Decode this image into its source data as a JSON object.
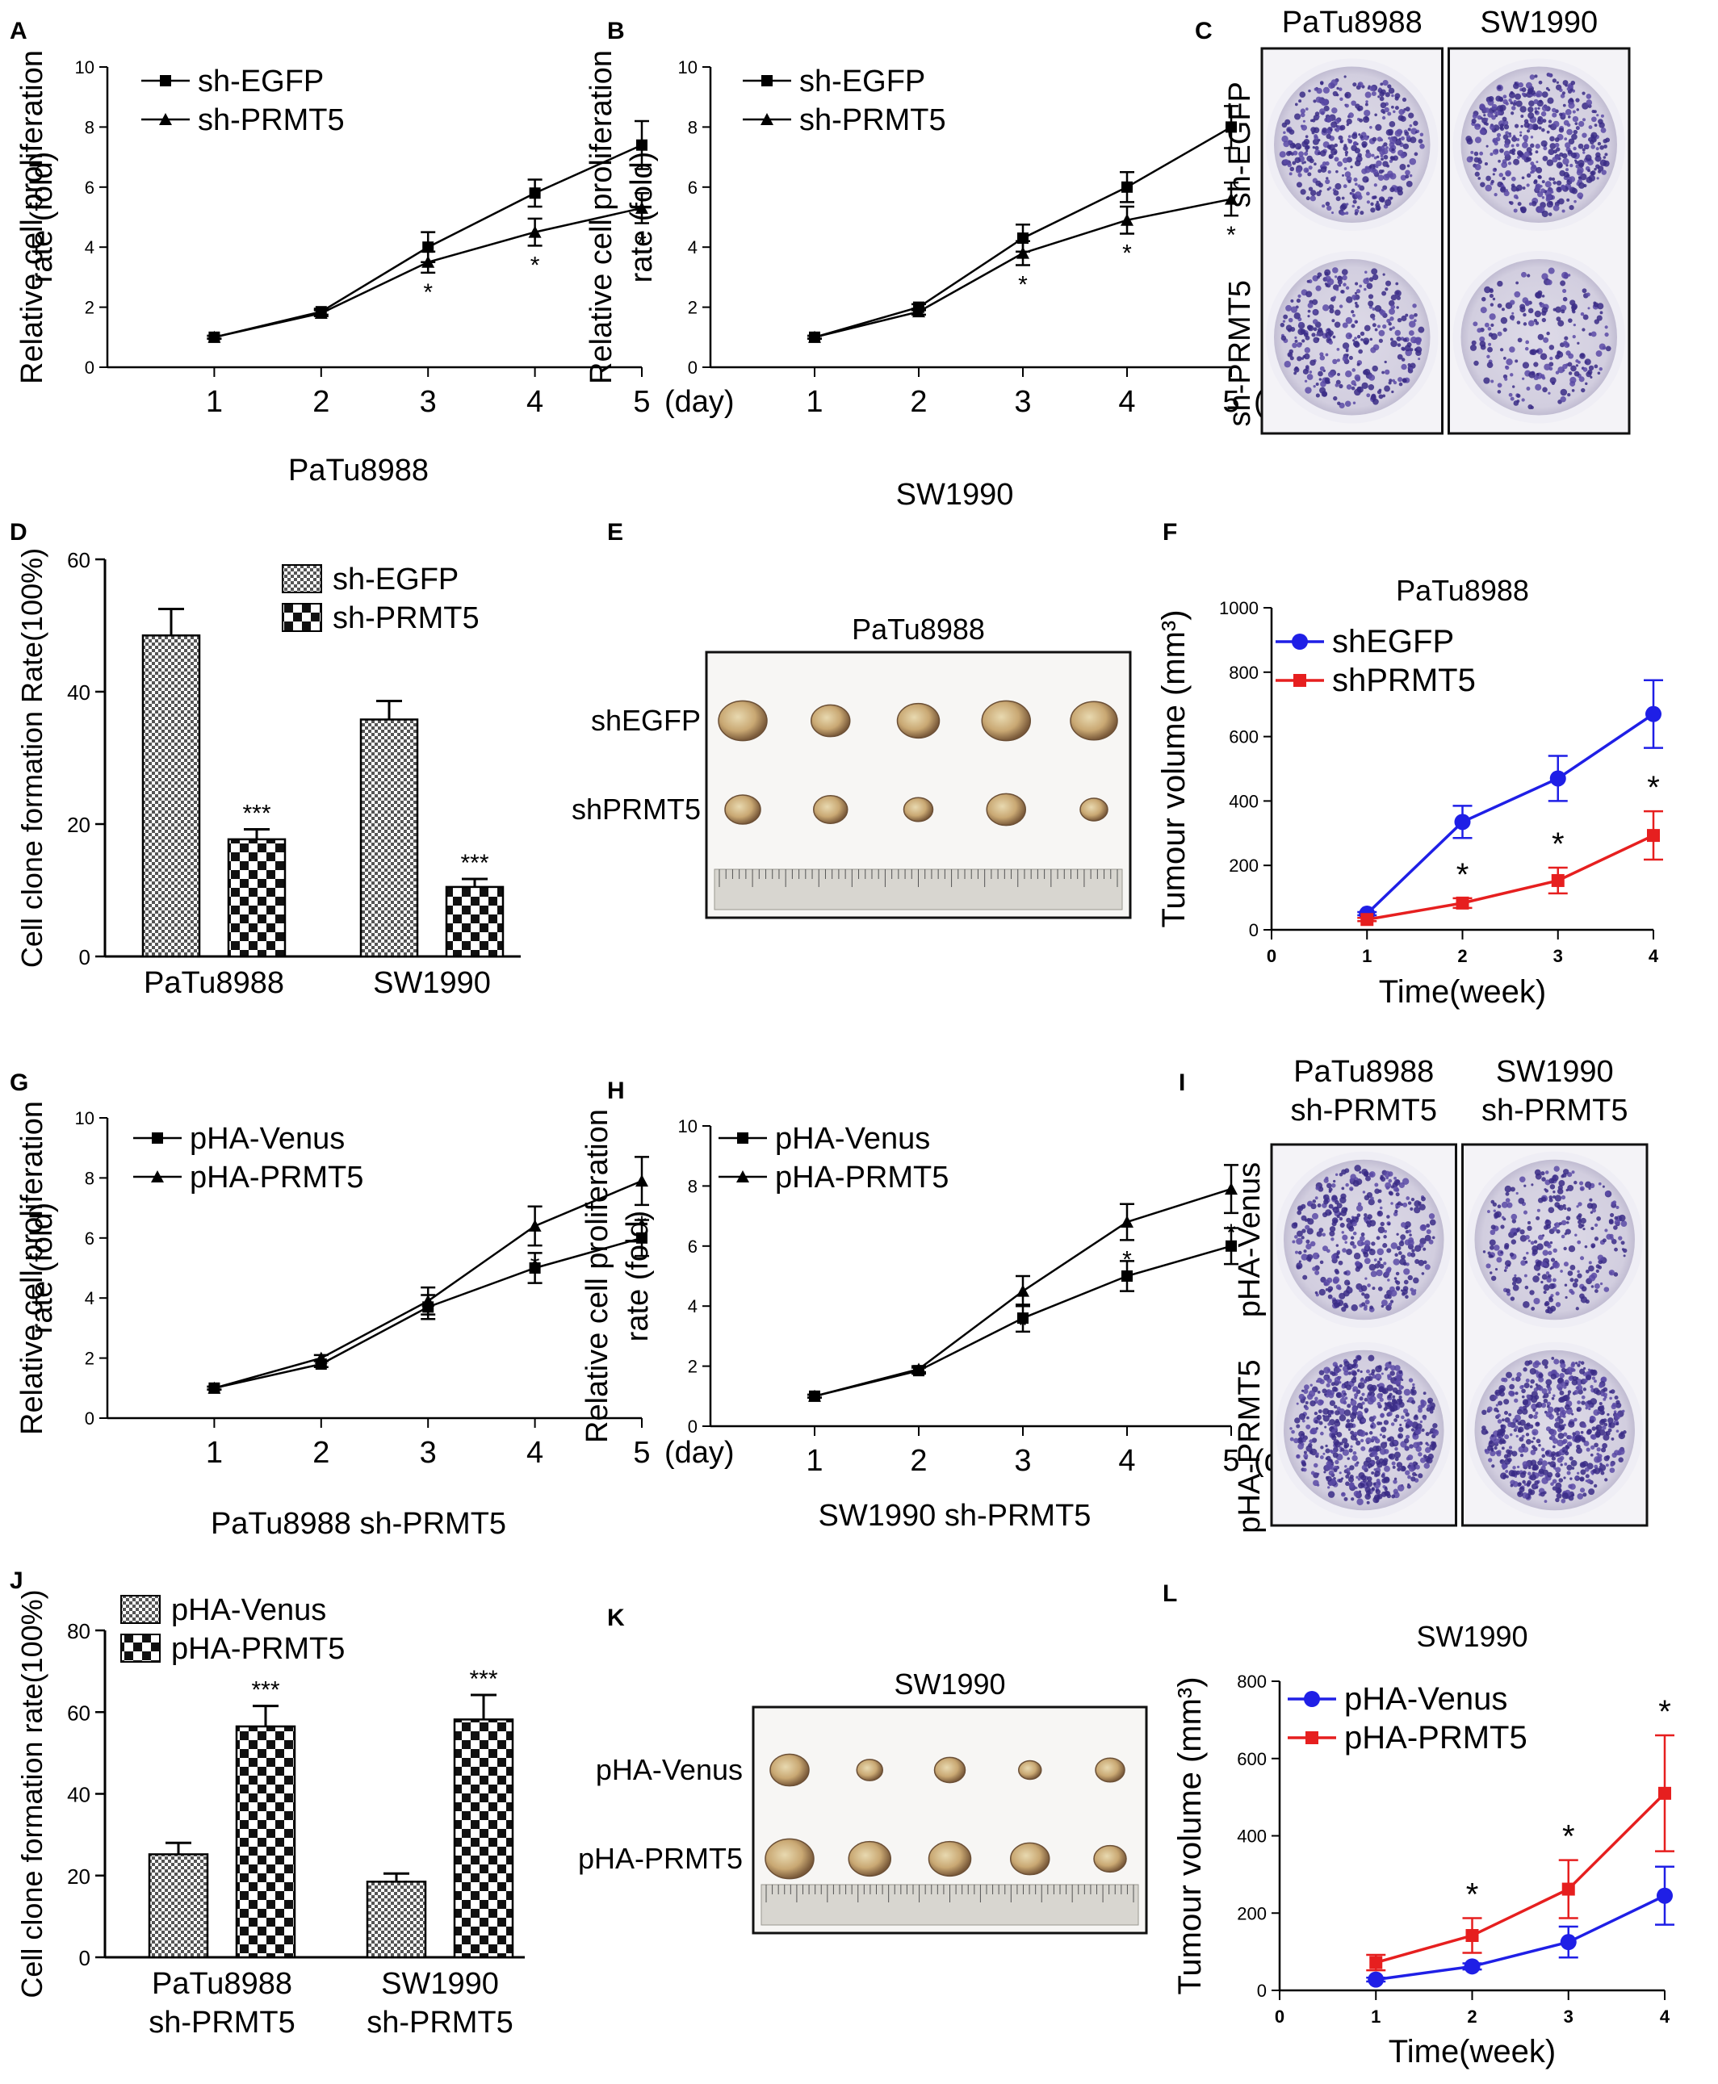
{
  "chart_data": [
    {
      "panel": "A",
      "type": "line",
      "x": [
        1,
        2,
        3,
        4,
        5
      ],
      "x_unit": "(day)",
      "xlabel": "PaTu8988",
      "ylabel": [
        "Relative cell proliferation",
        "rate (fold)"
      ],
      "ylim": [
        0,
        10
      ],
      "yticks": [
        0,
        2,
        4,
        6,
        8,
        10
      ],
      "series": [
        {
          "name": "sh-EGFP",
          "marker": "square",
          "values": [
            1.0,
            1.85,
            4.0,
            5.8,
            7.4
          ],
          "errors": [
            0.05,
            0.1,
            0.5,
            0.45,
            0.8
          ]
        },
        {
          "name": "sh-PRMT5",
          "marker": "triangle",
          "values": [
            1.0,
            1.8,
            3.5,
            4.5,
            5.3
          ],
          "errors": [
            0.05,
            0.1,
            0.35,
            0.45,
            0.5
          ]
        }
      ],
      "sig": [
        {
          "x": 3,
          "label": "*"
        },
        {
          "x": 4,
          "label": "*"
        },
        {
          "x": 5,
          "label": "*"
        }
      ]
    },
    {
      "panel": "B",
      "type": "line",
      "x": [
        1,
        2,
        3,
        4,
        5
      ],
      "x_unit": "(day)",
      "xlabel": "SW1990",
      "ylabel": [
        "Relative cell proliferation",
        "rate (fold)"
      ],
      "ylim": [
        0,
        10
      ],
      "yticks": [
        0,
        2,
        4,
        6,
        8,
        10
      ],
      "series": [
        {
          "name": "sh-EGFP",
          "marker": "square",
          "values": [
            1.0,
            2.0,
            4.3,
            6.0,
            8.0
          ],
          "errors": [
            0.05,
            0.1,
            0.45,
            0.5,
            0.7
          ]
        },
        {
          "name": "sh-PRMT5",
          "marker": "triangle",
          "values": [
            1.0,
            1.85,
            3.8,
            4.9,
            5.6
          ],
          "errors": [
            0.05,
            0.1,
            0.4,
            0.45,
            0.55
          ]
        }
      ],
      "sig": [
        {
          "x": 3,
          "label": "*"
        },
        {
          "x": 4,
          "label": "*"
        },
        {
          "x": 5,
          "label": "*"
        }
      ]
    },
    {
      "panel": "D",
      "type": "bar",
      "categories": [
        "PaTu8988",
        "SW1990"
      ],
      "ylabel": "Cell clone formation Rate(100%)",
      "ylim": [
        0,
        60
      ],
      "yticks": [
        0,
        20,
        40,
        60
      ],
      "series": [
        {
          "name": "sh-EGFP",
          "pattern": "fine",
          "values": [
            48.5,
            35.8
          ],
          "errors": [
            4.0,
            2.8
          ]
        },
        {
          "name": "sh-PRMT5",
          "pattern": "checker",
          "values": [
            17.7,
            10.5
          ],
          "errors": [
            1.5,
            1.2
          ]
        }
      ],
      "sig": [
        "***",
        "***"
      ]
    },
    {
      "panel": "F",
      "type": "line",
      "title": "PaTu8988",
      "x": [
        1,
        2,
        3,
        4
      ],
      "xlabel": "Time(week)",
      "ylabel": "Tumour volume (mm³)",
      "xlim": [
        0,
        4
      ],
      "xticks": [
        0,
        1,
        2,
        3,
        4
      ],
      "ylim": [
        0,
        1000
      ],
      "yticks": [
        0,
        200,
        400,
        600,
        800,
        1000
      ],
      "series": [
        {
          "name": "shEGFP",
          "color": "#1f1fe6",
          "marker": "circle",
          "values": [
            50,
            335,
            470,
            670
          ],
          "errors": [
            5,
            50,
            70,
            105
          ]
        },
        {
          "name": "shPRMT5",
          "color": "#e61f1f",
          "marker": "square",
          "values": [
            32,
            83,
            153,
            293
          ],
          "errors": [
            5,
            15,
            40,
            75
          ]
        }
      ],
      "sig": [
        {
          "x": 2,
          "label": "*"
        },
        {
          "x": 3,
          "label": "*"
        },
        {
          "x": 4,
          "label": "*"
        }
      ]
    },
    {
      "panel": "G",
      "type": "line",
      "x": [
        1,
        2,
        3,
        4,
        5
      ],
      "x_unit": "(day)",
      "xlabel": "PaTu8988 sh-PRMT5",
      "ylabel": [
        "Relative cell proliferation",
        "rate (fold)"
      ],
      "ylim": [
        0,
        10
      ],
      "yticks": [
        0,
        2,
        4,
        6,
        8,
        10
      ],
      "series": [
        {
          "name": "pHA-Venus",
          "marker": "square",
          "values": [
            1.0,
            1.8,
            3.7,
            5.0,
            6.0
          ],
          "errors": [
            0.05,
            0.1,
            0.4,
            0.5,
            0.6
          ]
        },
        {
          "name": "pHA-PRMT5",
          "marker": "triangle",
          "values": [
            1.0,
            2.0,
            3.9,
            6.4,
            7.9
          ],
          "errors": [
            0.05,
            0.1,
            0.45,
            0.65,
            0.8
          ]
        }
      ],
      "sig": [
        {
          "x": 4,
          "label": "*"
        },
        {
          "x": 5,
          "label": "*"
        }
      ]
    },
    {
      "panel": "H",
      "type": "line",
      "x": [
        1,
        2,
        3,
        4,
        5
      ],
      "x_unit": "(day)",
      "xlabel": "SW1990 sh-PRMT5",
      "ylabel": [
        "Relative cell proliferation",
        "rate (fold)"
      ],
      "ylim": [
        0,
        10
      ],
      "yticks": [
        0,
        2,
        4,
        6,
        8,
        10
      ],
      "series": [
        {
          "name": "pHA-Venus",
          "marker": "square",
          "values": [
            1.0,
            1.85,
            3.6,
            5.0,
            6.0
          ],
          "errors": [
            0.05,
            0.1,
            0.45,
            0.5,
            0.6
          ]
        },
        {
          "name": "pHA-PRMT5",
          "marker": "triangle",
          "values": [
            1.0,
            1.9,
            4.5,
            6.8,
            7.9
          ],
          "errors": [
            0.05,
            0.1,
            0.5,
            0.6,
            0.8
          ]
        }
      ],
      "sig": [
        {
          "x": 3,
          "label": "*"
        },
        {
          "x": 4,
          "label": "*"
        },
        {
          "x": 5,
          "label": "*"
        }
      ]
    },
    {
      "panel": "J",
      "type": "bar",
      "categories": [
        [
          "PaTu8988",
          "sh-PRMT5"
        ],
        [
          "SW1990",
          "sh-PRMT5"
        ]
      ],
      "ylabel": "Cell clone formation rate(100%)",
      "ylim": [
        0,
        80
      ],
      "yticks": [
        0,
        20,
        40,
        60,
        80
      ],
      "series": [
        {
          "name": "pHA-Venus",
          "pattern": "fine",
          "values": [
            25.2,
            18.5
          ],
          "errors": [
            2.8,
            2.0
          ]
        },
        {
          "name": "pHA-PRMT5",
          "pattern": "checker",
          "values": [
            56.5,
            58.2
          ],
          "errors": [
            5.0,
            6.0
          ]
        }
      ],
      "sig": [
        "***",
        "***"
      ]
    },
    {
      "panel": "L",
      "type": "line",
      "title": "SW1990",
      "x": [
        1,
        2,
        3,
        4
      ],
      "xlabel": "Time(week)",
      "ylabel": "Tumour volume (mm³)",
      "xlim": [
        0,
        4
      ],
      "xticks": [
        0,
        1,
        2,
        3,
        4
      ],
      "ylim": [
        0,
        800
      ],
      "yticks": [
        0,
        200,
        400,
        600,
        800
      ],
      "series": [
        {
          "name": "pHA-Venus",
          "color": "#1f1fe6",
          "marker": "circle",
          "values": [
            28,
            62,
            125,
            245
          ],
          "errors": [
            5,
            8,
            40,
            75
          ]
        },
        {
          "name": "pHA-PRMT5",
          "color": "#e61f1f",
          "marker": "square",
          "values": [
            72,
            142,
            262,
            510
          ],
          "errors": [
            20,
            45,
            75,
            150
          ]
        }
      ],
      "sig": [
        {
          "x": 2,
          "label": "*"
        },
        {
          "x": 3,
          "label": "*"
        },
        {
          "x": 4,
          "label": "*"
        }
      ]
    }
  ],
  "images": {
    "C": {
      "columns": [
        "PaTu8988",
        "SW1990"
      ],
      "rows": [
        "sh-EGFP",
        "sh-PRMT5"
      ]
    },
    "E": {
      "title": "PaTu8988",
      "rows": [
        "shEGFP",
        "shPRMT5"
      ]
    },
    "I": {
      "columns": [
        [
          "PaTu8988",
          "sh-PRMT5"
        ],
        [
          "SW1990",
          "sh-PRMT5"
        ]
      ],
      "rows": [
        "pHA-Venus",
        "pHA-PRMT5"
      ]
    },
    "K": {
      "title": "SW1990",
      "rows": [
        "pHA-Venus",
        "pHA-PRMT5"
      ]
    }
  },
  "panel_letters": [
    "A",
    "B",
    "C",
    "D",
    "E",
    "F",
    "G",
    "H",
    "I",
    "J",
    "K",
    "L"
  ]
}
